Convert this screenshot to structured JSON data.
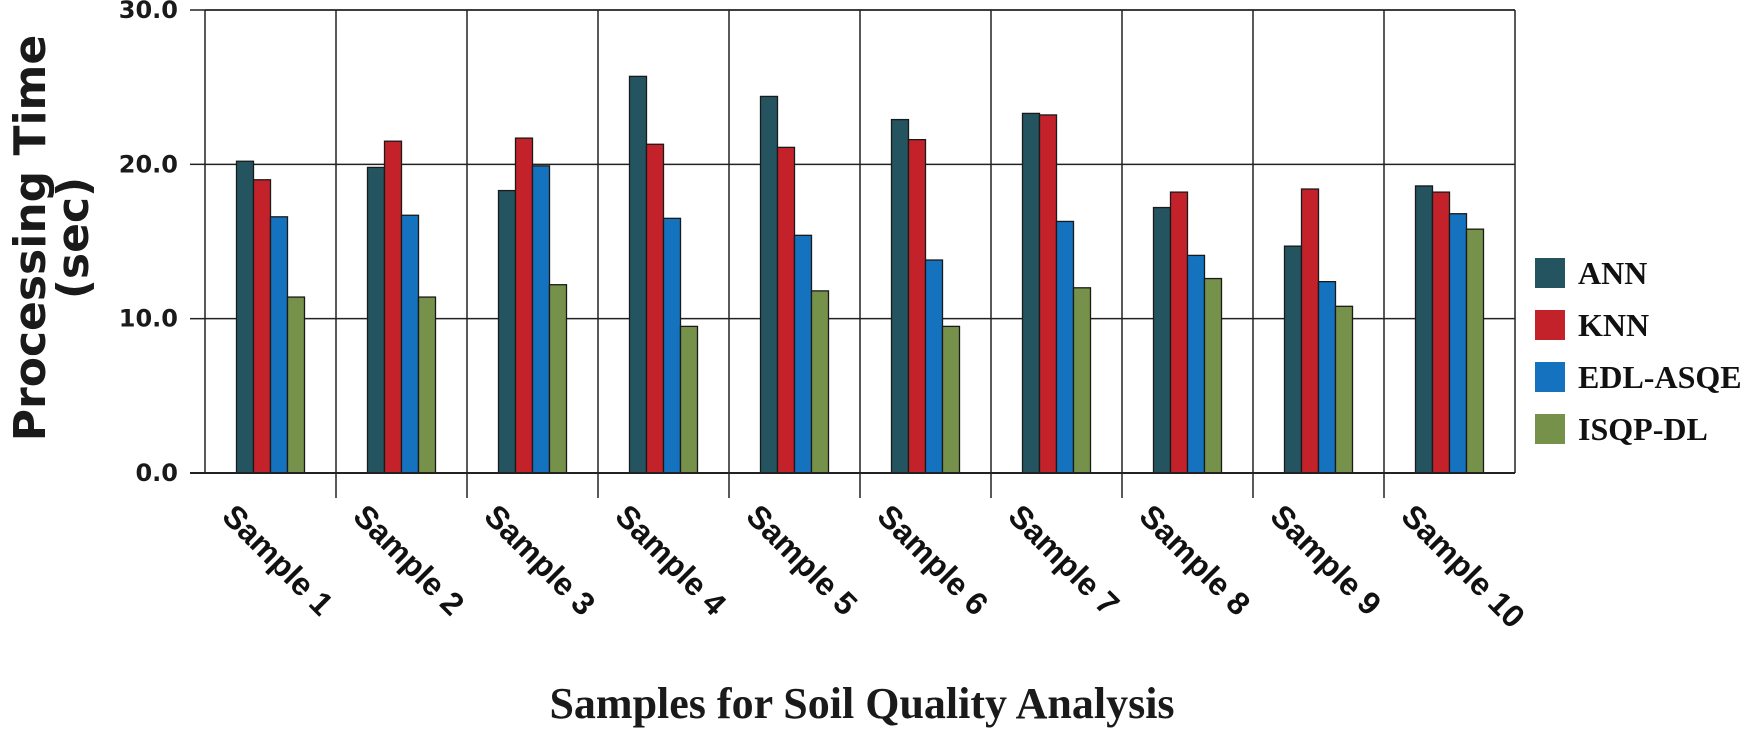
{
  "chart_data": {
    "type": "bar",
    "title": "",
    "xlabel": "Samples for Soil Quality Analysis",
    "ylabel_lines": [
      "Processing Time",
      "(sec)"
    ],
    "ylim": [
      0,
      30
    ],
    "yticks": [
      0,
      10,
      20,
      30
    ],
    "ytick_labels": [
      "0.0",
      "10.0",
      "20.0",
      "30.0"
    ],
    "grid": true,
    "legend_position": "right",
    "categories": [
      "Sample 1",
      "Sample 2",
      "Sample 3",
      "Sample 4",
      "Sample 5",
      "Sample 6",
      "Sample 7",
      "Sample 8",
      "Sample 9",
      "Sample 10"
    ],
    "series": [
      {
        "name": "ANN",
        "color": "#24545f",
        "values": [
          20.2,
          19.8,
          18.3,
          25.7,
          24.4,
          22.9,
          23.3,
          17.2,
          14.7,
          18.6
        ]
      },
      {
        "name": "KNN",
        "color": "#c4222a",
        "values": [
          19.0,
          21.5,
          21.7,
          21.3,
          21.1,
          21.6,
          23.2,
          18.2,
          18.4,
          18.2
        ]
      },
      {
        "name": "EDL-ASQE",
        "color": "#1572be",
        "values": [
          16.6,
          16.7,
          19.9,
          16.5,
          15.4,
          13.8,
          16.3,
          14.1,
          12.4,
          16.8
        ]
      },
      {
        "name": "ISQP-DL",
        "color": "#76924a",
        "values": [
          11.4,
          11.4,
          12.2,
          9.5,
          11.8,
          9.5,
          12.0,
          12.6,
          10.8,
          15.8
        ]
      }
    ]
  }
}
